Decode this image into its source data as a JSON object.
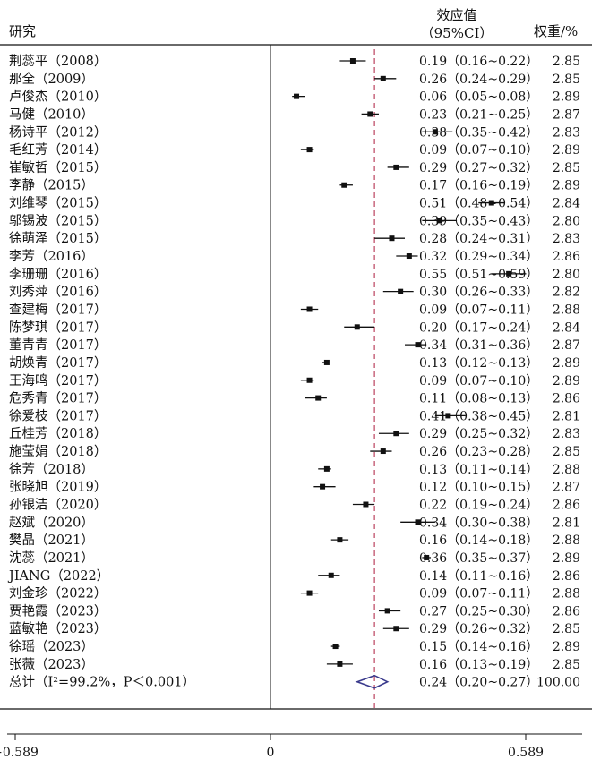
{
  "header": {
    "study_label": "研究",
    "effect_label_line1": "效应值",
    "effect_label_line2": "（95%CI）",
    "weight_label": "权重/%"
  },
  "colors": {
    "reference_line": "#c0506a",
    "summary_diamond": "#3a3a8c",
    "axis": "#111111"
  },
  "chart_data": {
    "type": "forest",
    "xticks": [
      -0.589,
      0,
      0.589
    ],
    "tick_labels": [
      "−0.589",
      "0",
      "0.589"
    ],
    "xlim": [
      -0.589,
      0.589
    ],
    "pooled_line": 0.24,
    "studies": [
      {
        "study": "荆蕊平（2008）",
        "es": 0.19,
        "ci_text": "0.19（0.16~0.22）",
        "lo": 0.16,
        "hi": 0.22,
        "weight": "2.85"
      },
      {
        "study": "那全（2009）",
        "es": 0.26,
        "ci_text": "0.26（0.24~0.29）",
        "lo": 0.24,
        "hi": 0.29,
        "weight": "2.85"
      },
      {
        "study": "卢俊杰（2010）",
        "es": 0.06,
        "ci_text": "0.06（0.05~0.08）",
        "lo": 0.05,
        "hi": 0.08,
        "weight": "2.89"
      },
      {
        "study": "马健（2010）",
        "es": 0.23,
        "ci_text": "0.23（0.21~0.25）",
        "lo": 0.21,
        "hi": 0.25,
        "weight": "2.87"
      },
      {
        "study": "杨诗平（2012）",
        "es": 0.38,
        "ci_text": "0.38（0.35~0.42）",
        "lo": 0.35,
        "hi": 0.42,
        "weight": "2.83"
      },
      {
        "study": "毛红芳（2014）",
        "es": 0.09,
        "ci_text": "0.09（0.07~0.10）",
        "lo": 0.07,
        "hi": 0.1,
        "weight": "2.89"
      },
      {
        "study": "崔敏哲（2015）",
        "es": 0.29,
        "ci_text": "0.29（0.27~0.32）",
        "lo": 0.27,
        "hi": 0.32,
        "weight": "2.85"
      },
      {
        "study": "李静（2015）",
        "es": 0.17,
        "ci_text": "0.17（0.16~0.19）",
        "lo": 0.16,
        "hi": 0.19,
        "weight": "2.89"
      },
      {
        "study": "刘维琴（2015）",
        "es": 0.51,
        "ci_text": "0.51（0.48~0.54）",
        "lo": 0.48,
        "hi": 0.54,
        "weight": "2.84"
      },
      {
        "study": "邬锡波（2015）",
        "es": 0.39,
        "ci_text": "0.39（0.35~0.43）",
        "lo": 0.35,
        "hi": 0.43,
        "weight": "2.80"
      },
      {
        "study": "徐萌泽（2015）",
        "es": 0.28,
        "ci_text": "0.28（0.24~0.31）",
        "lo": 0.24,
        "hi": 0.31,
        "weight": "2.83"
      },
      {
        "study": "李芳（2016）",
        "es": 0.32,
        "ci_text": "0.32（0.29~0.34）",
        "lo": 0.29,
        "hi": 0.34,
        "weight": "2.86"
      },
      {
        "study": "李珊珊（2016）",
        "es": 0.55,
        "ci_text": "0.55（0.51~0.59）",
        "lo": 0.51,
        "hi": 0.59,
        "weight": "2.80"
      },
      {
        "study": "刘秀萍（2016）",
        "es": 0.3,
        "ci_text": "0.30（0.26~0.33）",
        "lo": 0.26,
        "hi": 0.33,
        "weight": "2.82"
      },
      {
        "study": "查建梅（2017）",
        "es": 0.09,
        "ci_text": "0.09（0.07~0.11）",
        "lo": 0.07,
        "hi": 0.11,
        "weight": "2.88"
      },
      {
        "study": "陈梦琪（2017）",
        "es": 0.2,
        "ci_text": "0.20（0.17~0.24）",
        "lo": 0.17,
        "hi": 0.24,
        "weight": "2.84"
      },
      {
        "study": "董青青（2017）",
        "es": 0.34,
        "ci_text": "0.34（0.31~0.36）",
        "lo": 0.31,
        "hi": 0.36,
        "weight": "2.87"
      },
      {
        "study": "胡焕青（2017）",
        "es": 0.13,
        "ci_text": "0.13（0.12~0.13）",
        "lo": 0.12,
        "hi": 0.13,
        "weight": "2.89"
      },
      {
        "study": "王海鸣（2017）",
        "es": 0.09,
        "ci_text": "0.09（0.07~0.10）",
        "lo": 0.07,
        "hi": 0.1,
        "weight": "2.89"
      },
      {
        "study": "危秀青（2017）",
        "es": 0.11,
        "ci_text": "0.11（0.08~0.13）",
        "lo": 0.08,
        "hi": 0.13,
        "weight": "2.86"
      },
      {
        "study": "徐爱枝（2017）",
        "es": 0.41,
        "ci_text": "0.41（0.38~0.45）",
        "lo": 0.38,
        "hi": 0.45,
        "weight": "2.81"
      },
      {
        "study": "丘桂芳（2018）",
        "es": 0.29,
        "ci_text": "0.29（0.25~0.32）",
        "lo": 0.25,
        "hi": 0.32,
        "weight": "2.83"
      },
      {
        "study": "施莹娟（2018）",
        "es": 0.26,
        "ci_text": "0.26（0.23~0.28）",
        "lo": 0.23,
        "hi": 0.28,
        "weight": "2.85"
      },
      {
        "study": "徐芳（2018）",
        "es": 0.13,
        "ci_text": "0.13（0.11~0.14）",
        "lo": 0.11,
        "hi": 0.14,
        "weight": "2.88"
      },
      {
        "study": "张晓旭（2019）",
        "es": 0.12,
        "ci_text": "0.12（0.10~0.15）",
        "lo": 0.1,
        "hi": 0.15,
        "weight": "2.87"
      },
      {
        "study": "孙银洁（2020）",
        "es": 0.22,
        "ci_text": "0.22（0.19~0.24）",
        "lo": 0.19,
        "hi": 0.24,
        "weight": "2.86"
      },
      {
        "study": "赵斌（2020）",
        "es": 0.34,
        "ci_text": "0.34（0.30~0.38）",
        "lo": 0.3,
        "hi": 0.38,
        "weight": "2.81"
      },
      {
        "study": "樊晶（2021）",
        "es": 0.16,
        "ci_text": "0.16（0.14~0.18）",
        "lo": 0.14,
        "hi": 0.18,
        "weight": "2.88"
      },
      {
        "study": "沈蕊（2021）",
        "es": 0.36,
        "ci_text": "0.36（0.35~0.37）",
        "lo": 0.35,
        "hi": 0.37,
        "weight": "2.89"
      },
      {
        "study": "JIANG（2022）",
        "es": 0.14,
        "ci_text": "0.14（0.11~0.16）",
        "lo": 0.11,
        "hi": 0.16,
        "weight": "2.86"
      },
      {
        "study": "刘金珍（2022）",
        "es": 0.09,
        "ci_text": "0.09（0.07~0.11）",
        "lo": 0.07,
        "hi": 0.11,
        "weight": "2.88"
      },
      {
        "study": "贾艳霞（2023）",
        "es": 0.27,
        "ci_text": "0.27（0.25~0.30）",
        "lo": 0.25,
        "hi": 0.3,
        "weight": "2.86"
      },
      {
        "study": "蓝敏艳（2023）",
        "es": 0.29,
        "ci_text": "0.29（0.26~0.32）",
        "lo": 0.26,
        "hi": 0.32,
        "weight": "2.85"
      },
      {
        "study": "徐瑶（2023）",
        "es": 0.15,
        "ci_text": "0.15（0.14~0.16）",
        "lo": 0.14,
        "hi": 0.16,
        "weight": "2.89"
      },
      {
        "study": "张薇（2023）",
        "es": 0.16,
        "ci_text": "0.16（0.13~0.19）",
        "lo": 0.13,
        "hi": 0.19,
        "weight": "2.85"
      }
    ],
    "summary": {
      "label": "总计（I²=99.2%，P＜0.001）",
      "es": 0.24,
      "lo": 0.2,
      "hi": 0.27,
      "ci_text": "0.24（0.20~0.27）",
      "weight": "100.00"
    }
  }
}
